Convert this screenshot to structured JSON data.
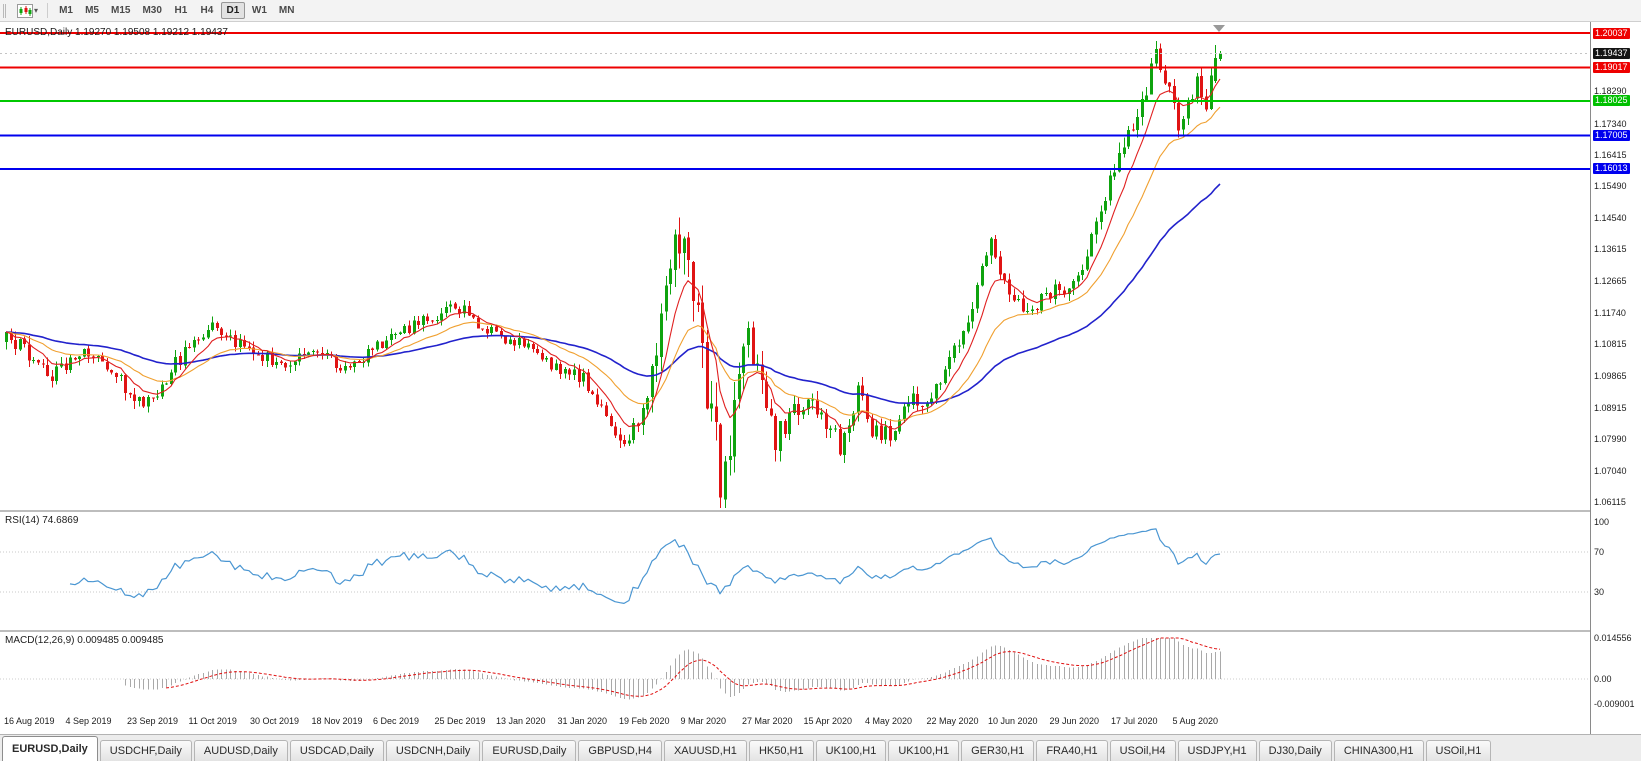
{
  "toolbar": {
    "timeframes": [
      "M1",
      "M5",
      "M15",
      "M30",
      "H1",
      "H4",
      "D1",
      "W1",
      "MN"
    ],
    "active_timeframe": "D1"
  },
  "chart_data": {
    "type": "candlestick",
    "symbol": "EURUSD",
    "timeframe": "Daily",
    "title": "EURUSD,Daily 1.19270 1.19508 1.19212 1.19437",
    "ohlc_display": {
      "open": "1.19270",
      "high": "1.19508",
      "low": "1.19212",
      "close": "1.19437"
    },
    "bars": 266,
    "bid_price": 1.19437,
    "up_color": "#0fa30f",
    "down_color": "#e01414",
    "price_axis": {
      "min": 1.05907,
      "max": 1.20363,
      "ticks": [
        {
          "label": "1.20037",
          "price": 1.20037,
          "style": "red",
          "color": "#ee0000"
        },
        {
          "label": "1.19437",
          "price": 1.19437,
          "style": "black",
          "color": "#151515"
        },
        {
          "label": "1.19017",
          "price": 1.19017,
          "style": "red",
          "color": "#ee0000"
        },
        {
          "label": "1.18290",
          "price": 1.1829,
          "style": "plain"
        },
        {
          "label": "1.18025",
          "price": 1.18025,
          "style": "green",
          "color": "#00c000"
        },
        {
          "label": "1.17340",
          "price": 1.1734,
          "style": "plain"
        },
        {
          "label": "1.17005",
          "price": 1.17005,
          "style": "blue",
          "color": "#0000ee"
        },
        {
          "label": "1.16415",
          "price": 1.16415,
          "style": "plain"
        },
        {
          "label": "1.16013",
          "price": 1.16013,
          "style": "blue",
          "color": "#0000ee"
        },
        {
          "label": "1.15490",
          "price": 1.1549,
          "style": "plain"
        },
        {
          "label": "1.14540",
          "price": 1.1454,
          "style": "plain"
        },
        {
          "label": "1.13615",
          "price": 1.13615,
          "style": "plain"
        },
        {
          "label": "1.12665",
          "price": 1.12665,
          "style": "plain"
        },
        {
          "label": "1.11740",
          "price": 1.1174,
          "style": "plain"
        },
        {
          "label": "1.10815",
          "price": 1.10815,
          "style": "plain"
        },
        {
          "label": "1.09865",
          "price": 1.09865,
          "style": "plain"
        },
        {
          "label": "1.08915",
          "price": 1.08915,
          "style": "plain"
        },
        {
          "label": "1.07990",
          "price": 1.0799,
          "style": "plain"
        },
        {
          "label": "1.07040",
          "price": 1.0704,
          "style": "plain"
        },
        {
          "label": "1.06115",
          "price": 1.06115,
          "style": "plain"
        }
      ]
    },
    "horizontal_lines": [
      {
        "price": 1.20037,
        "color": "#ee0000",
        "width": 2
      },
      {
        "price": 1.19017,
        "color": "#ee0000",
        "width": 2
      },
      {
        "price": 1.18025,
        "color": "#00c800",
        "width": 2
      },
      {
        "price": 1.17005,
        "color": "#0000ee",
        "width": 2
      },
      {
        "price": 1.16013,
        "color": "#0000ee",
        "width": 2
      }
    ],
    "x_axis_dates": [
      "16 Aug 2019",
      "4 Sep 2019",
      "23 Sep 2019",
      "11 Oct 2019",
      "30 Oct 2019",
      "18 Nov 2019",
      "6 Dec 2019",
      "25 Dec 2019",
      "13 Jan 2020",
      "31 Jan 2020",
      "19 Feb 2020",
      "9 Mar 2020",
      "27 Mar 2020",
      "15 Apr 2020",
      "4 May 2020",
      "22 May 2020",
      "10 Jun 2020",
      "29 Jun 2020",
      "17 Jul 2020",
      "5 Aug 2020"
    ],
    "close_keypoints": [
      [
        0,
        1.1095,
        0.0045
      ],
      [
        5,
        1.1058,
        0.0045
      ],
      [
        10,
        1.0992,
        0.0045
      ],
      [
        17,
        1.1068,
        0.004
      ],
      [
        23,
        1.1005,
        0.004
      ],
      [
        30,
        1.0898,
        0.0045
      ],
      [
        38,
        1.104,
        0.004
      ],
      [
        45,
        1.1148,
        0.0038
      ],
      [
        52,
        1.1072,
        0.0035
      ],
      [
        60,
        1.1018,
        0.0035
      ],
      [
        67,
        1.1075,
        0.0033
      ],
      [
        74,
        1.1012,
        0.0033
      ],
      [
        81,
        1.1072,
        0.0035
      ],
      [
        88,
        1.1128,
        0.0035
      ],
      [
        94,
        1.1172,
        0.0035
      ],
      [
        97,
        1.1208,
        0.0033
      ],
      [
        102,
        1.1158,
        0.0033
      ],
      [
        107,
        1.1105,
        0.003
      ],
      [
        113,
        1.1088,
        0.003
      ],
      [
        119,
        1.1022,
        0.003
      ],
      [
        126,
        1.0982,
        0.0033
      ],
      [
        131,
        1.0868,
        0.0035
      ],
      [
        135,
        1.0788,
        0.0042
      ],
      [
        139,
        1.0882,
        0.0062
      ],
      [
        142,
        1.1052,
        0.0092
      ],
      [
        145,
        1.1302,
        0.0112
      ],
      [
        148,
        1.1438,
        0.0132
      ],
      [
        150,
        1.1278,
        0.0142
      ],
      [
        153,
        1.0952,
        0.015
      ],
      [
        156,
        1.0682,
        0.014
      ],
      [
        159,
        1.0852,
        0.012
      ],
      [
        162,
        1.1098,
        0.01
      ],
      [
        165,
        1.0948,
        0.0082
      ],
      [
        168,
        1.0802,
        0.007
      ],
      [
        172,
        1.0878,
        0.006
      ],
      [
        175,
        1.0918,
        0.0055
      ],
      [
        179,
        1.0852,
        0.005
      ],
      [
        182,
        1.0782,
        0.005
      ],
      [
        186,
        1.0948,
        0.0055
      ],
      [
        189,
        1.0832,
        0.005
      ],
      [
        193,
        1.0806,
        0.0045
      ],
      [
        197,
        1.0918,
        0.0045
      ],
      [
        201,
        1.0898,
        0.004
      ],
      [
        205,
        1.1008,
        0.0045
      ],
      [
        209,
        1.1135,
        0.005
      ],
      [
        213,
        1.1288,
        0.0052
      ],
      [
        215,
        1.1368,
        0.0055
      ],
      [
        219,
        1.1252,
        0.005
      ],
      [
        222,
        1.1178,
        0.0048
      ],
      [
        226,
        1.1215,
        0.0045
      ],
      [
        230,
        1.1248,
        0.0042
      ],
      [
        234,
        1.1268,
        0.004
      ],
      [
        238,
        1.1428,
        0.005
      ],
      [
        242,
        1.1598,
        0.0058
      ],
      [
        246,
        1.1748,
        0.0058
      ],
      [
        249,
        1.185,
        0.0055
      ],
      [
        251,
        1.193,
        0.005
      ],
      [
        254,
        1.182,
        0.005
      ],
      [
        256,
        1.172,
        0.0048
      ],
      [
        258,
        1.178,
        0.0045
      ],
      [
        260,
        1.186,
        0.0045
      ],
      [
        262,
        1.18,
        0.0045
      ],
      [
        263,
        1.187,
        0.0042
      ],
      [
        265,
        1.1944,
        0.004
      ]
    ],
    "final_candles": [
      {
        "open": 1.1862,
        "high": 1.1968,
        "low": 1.1856,
        "close": 1.193
      },
      {
        "open": 1.1927,
        "high": 1.19508,
        "low": 1.19212,
        "close": 1.19437
      }
    ],
    "moving_averages": [
      {
        "period": 55,
        "method": "ema",
        "color": "#2222cc",
        "width": 1.6
      },
      {
        "period": 21,
        "method": "ema",
        "color": "#f0a030",
        "width": 1.1
      },
      {
        "period": 8,
        "method": "ema",
        "color": "#e02020",
        "width": 1.1
      }
    ],
    "indicators": {
      "rsi": {
        "label": "RSI(14) 74.6869",
        "period": 14,
        "value": 74.6869,
        "color": "#4a96d2",
        "axis": [
          {
            "label": "100",
            "value": 100,
            "line": false
          },
          {
            "label": "70",
            "value": 70,
            "line": true
          },
          {
            "label": "30",
            "value": 30,
            "line": true
          }
        ]
      },
      "macd": {
        "label": "MACD(12,26,9) 0.009485 0.009485",
        "fast": 12,
        "slow": 26,
        "signal": 9,
        "value": 0.009485,
        "histogram_color": "#a9a9a9",
        "signal_color": "#e01010",
        "scale_max": 0.014556,
        "scale_min": -0.009001,
        "axis": [
          {
            "label": "0.014556",
            "value": 0.014556
          },
          {
            "label": "0.00",
            "value": 0
          },
          {
            "label": "-0.009001",
            "value": -0.009001
          }
        ]
      }
    }
  },
  "tabs": [
    {
      "label": "EURUSD,Daily",
      "active": true
    },
    {
      "label": "USDCHF,Daily",
      "active": false
    },
    {
      "label": "AUDUSD,Daily",
      "active": false
    },
    {
      "label": "USDCAD,Daily",
      "active": false
    },
    {
      "label": "USDCNH,Daily",
      "active": false
    },
    {
      "label": "EURUSD,Daily",
      "active": false
    },
    {
      "label": "GBPUSD,H4",
      "active": false
    },
    {
      "label": "XAUUSD,H1",
      "active": false
    },
    {
      "label": "HK50,H1",
      "active": false
    },
    {
      "label": "UK100,H1",
      "active": false
    },
    {
      "label": "UK100,H1",
      "active": false
    },
    {
      "label": "GER30,H1",
      "active": false
    },
    {
      "label": "FRA40,H1",
      "active": false
    },
    {
      "label": "USOil,H4",
      "active": false
    },
    {
      "label": "USDJPY,H1",
      "active": false
    },
    {
      "label": "DJ30,Daily",
      "active": false
    },
    {
      "label": "CHINA300,H1",
      "active": false
    },
    {
      "label": "USOil,H1",
      "active": false
    }
  ]
}
